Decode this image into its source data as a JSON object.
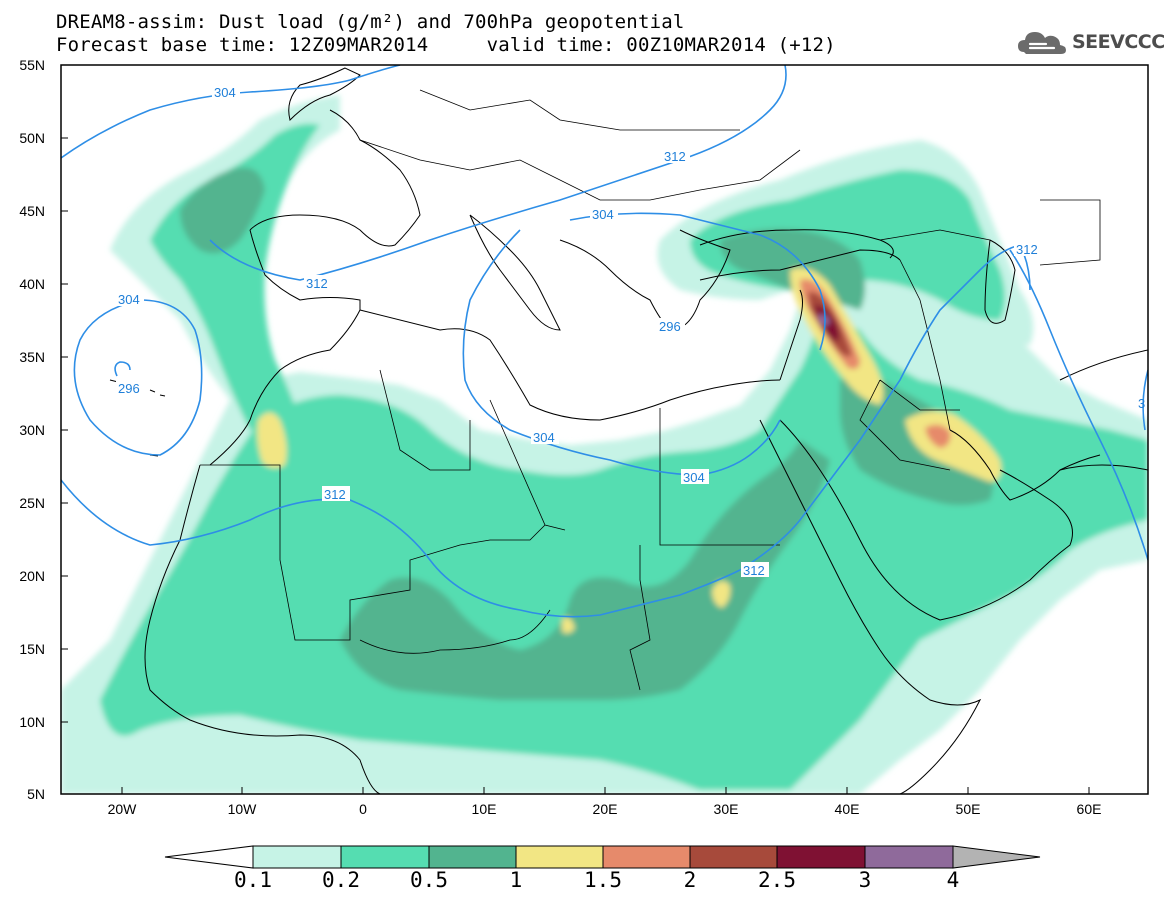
{
  "title": {
    "line1": "DREAM8-assim: Dust load (g/m²) and 700hPa geopotential",
    "line2": "Forecast base time: 12Z09MAR2014     valid time: 00Z10MAR2014 (+12)"
  },
  "logo": {
    "text": "SEEVCCC",
    "icon": "cloud-icon"
  },
  "axes": {
    "lon_ticks": [
      "20W",
      "10W",
      "0",
      "10E",
      "20E",
      "30E",
      "40E",
      "50E",
      "60E"
    ],
    "lat_ticks": [
      "55N",
      "50N",
      "45N",
      "40N",
      "35N",
      "30N",
      "25N",
      "20N",
      "15N",
      "10N",
      "5N"
    ],
    "lon_range": [
      -25,
      65
    ],
    "lat_range": [
      5,
      55
    ]
  },
  "contour_labels": {
    "c304_atlantic_north": "304",
    "c312_north": "312",
    "c304_adriatic": "304",
    "c312_east": "312",
    "c312_iberia": "312",
    "c304_atlantic": "304",
    "c296": "296",
    "c296_aegean": "296",
    "c304_libya": "304",
    "c304_egypt": "304",
    "c312_sahara": "312",
    "c312_sudan": "312",
    "c3_edge": "3"
  },
  "colorbar": {
    "labels": [
      "0.1",
      "0.2",
      "0.5",
      "1",
      "1.5",
      "2",
      "2.5",
      "3",
      "4"
    ],
    "colors": [
      "#c6f3e6",
      "#55ddb1",
      "#52b48f",
      "#f2e684",
      "#e68a6b",
      "#a74a3b",
      "#7f1133",
      "#8f6a9b",
      "#b3b3b3"
    ]
  }
}
